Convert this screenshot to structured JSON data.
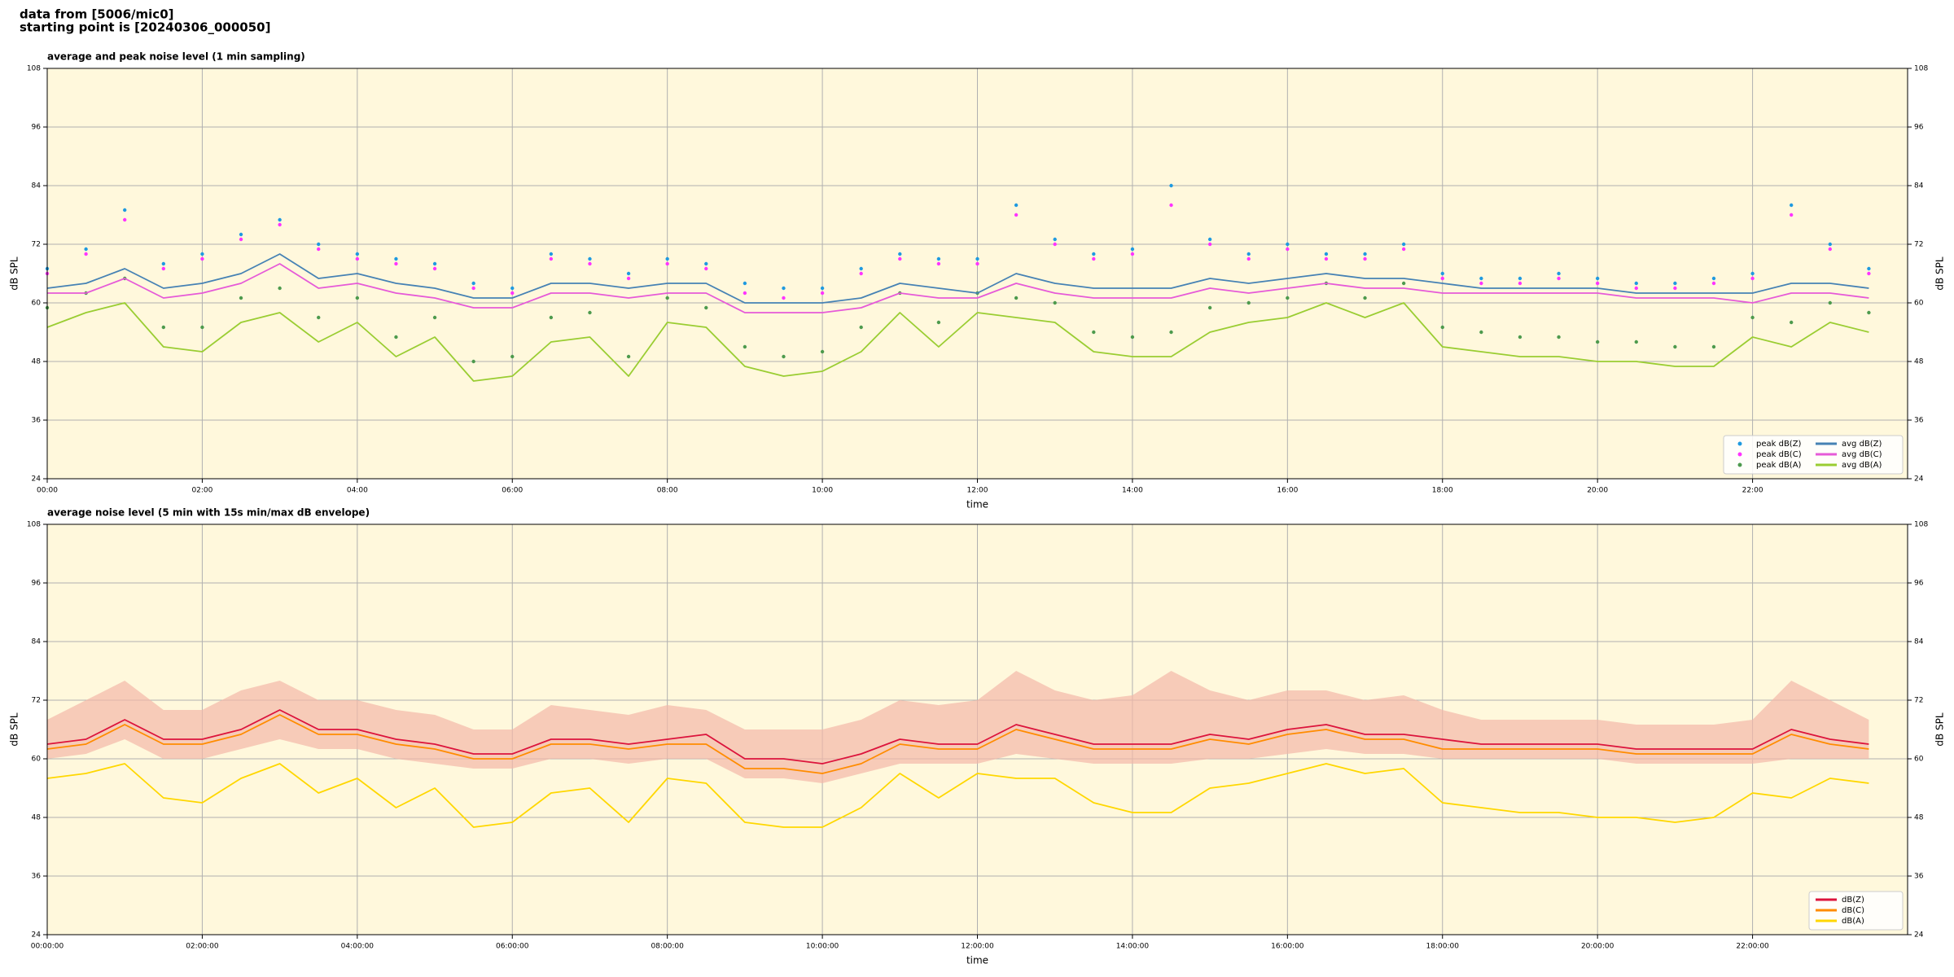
{
  "header": {
    "line1": "data from [5006/mic0]",
    "line2": "starting point is [20240306_000050]"
  },
  "chart_data": [
    {
      "type": "line",
      "title": "average and peak noise level (1 min sampling)",
      "x_label": "time",
      "y_label": "dB SPL",
      "y2_label": "dB SPL",
      "background": "#fff8dc",
      "grid": true,
      "legend": "lower right",
      "legend_columns": 2,
      "xlim": [
        0,
        24
      ],
      "xticks": [
        {
          "value": 0,
          "label": "00:00"
        },
        {
          "value": 2,
          "label": "02:00"
        },
        {
          "value": 4,
          "label": "04:00"
        },
        {
          "value": 6,
          "label": "06:00"
        },
        {
          "value": 8,
          "label": "08:00"
        },
        {
          "value": 10,
          "label": "10:00"
        },
        {
          "value": 12,
          "label": "12:00"
        },
        {
          "value": 14,
          "label": "14:00"
        },
        {
          "value": 16,
          "label": "16:00"
        },
        {
          "value": 18,
          "label": "18:00"
        },
        {
          "value": 20,
          "label": "20:00"
        },
        {
          "value": 22,
          "label": "22:00"
        }
      ],
      "ylim": [
        24,
        108
      ],
      "yticks": [
        24,
        36,
        48,
        60,
        72,
        84,
        96,
        108
      ],
      "y2lim": [
        24,
        108
      ],
      "y2ticks": [
        24,
        36,
        48,
        60,
        72,
        84,
        96,
        108
      ],
      "x": [
        0,
        0.5,
        1,
        1.5,
        2,
        2.5,
        3,
        3.5,
        4,
        4.5,
        5,
        5.5,
        6,
        6.5,
        7,
        7.5,
        8,
        8.5,
        9,
        9.5,
        10,
        10.5,
        11,
        11.5,
        12,
        12.5,
        13,
        13.5,
        14,
        14.5,
        15,
        15.5,
        16,
        16.5,
        17,
        17.5,
        18,
        18.5,
        19,
        19.5,
        20,
        20.5,
        21,
        21.5,
        22,
        22.5,
        23,
        23.5
      ],
      "series": [
        {
          "name": "peak dB(Z)",
          "type": "scatter",
          "color": "#1f9ae0",
          "values": [
            67,
            71,
            79,
            68,
            70,
            74,
            77,
            72,
            70,
            69,
            68,
            64,
            63,
            70,
            69,
            66,
            69,
            68,
            64,
            63,
            63,
            67,
            70,
            69,
            69,
            80,
            73,
            70,
            71,
            84,
            73,
            70,
            72,
            70,
            70,
            72,
            66,
            65,
            65,
            66,
            65,
            64,
            64,
            65,
            66,
            80,
            72,
            67
          ]
        },
        {
          "name": "peak dB(C)",
          "type": "scatter",
          "color": "#ff33ff",
          "values": [
            66,
            70,
            77,
            67,
            69,
            73,
            76,
            71,
            69,
            68,
            67,
            63,
            62,
            69,
            68,
            65,
            68,
            67,
            62,
            61,
            62,
            66,
            69,
            68,
            68,
            78,
            72,
            69,
            70,
            80,
            72,
            69,
            71,
            69,
            69,
            71,
            65,
            64,
            64,
            65,
            64,
            63,
            63,
            64,
            65,
            78,
            71,
            66
          ]
        },
        {
          "name": "peak dB(A)",
          "type": "scatter",
          "color": "#4d9a4d",
          "values": [
            59,
            62,
            65,
            55,
            55,
            61,
            63,
            57,
            61,
            53,
            57,
            48,
            49,
            57,
            58,
            49,
            61,
            59,
            51,
            49,
            50,
            55,
            62,
            56,
            62,
            61,
            60,
            54,
            53,
            54,
            59,
            60,
            61,
            64,
            61,
            64,
            55,
            54,
            53,
            53,
            52,
            52,
            51,
            51,
            57,
            56,
            60,
            58
          ]
        },
        {
          "name": "avg dB(Z)",
          "type": "line",
          "color": "#4682b4",
          "values": [
            63,
            64,
            67,
            63,
            64,
            66,
            70,
            65,
            66,
            64,
            63,
            61,
            61,
            64,
            64,
            63,
            64,
            64,
            60,
            60,
            60,
            61,
            64,
            63,
            62,
            66,
            64,
            63,
            63,
            63,
            65,
            64,
            65,
            66,
            65,
            65,
            64,
            63,
            63,
            63,
            63,
            62,
            62,
            62,
            62,
            64,
            64,
            63
          ]
        },
        {
          "name": "avg dB(C)",
          "type": "line",
          "color": "#e65ad8",
          "values": [
            62,
            62,
            65,
            61,
            62,
            64,
            68,
            63,
            64,
            62,
            61,
            59,
            59,
            62,
            62,
            61,
            62,
            62,
            58,
            58,
            58,
            59,
            62,
            61,
            61,
            64,
            62,
            61,
            61,
            61,
            63,
            62,
            63,
            64,
            63,
            63,
            62,
            62,
            62,
            62,
            62,
            61,
            61,
            61,
            60,
            62,
            62,
            61
          ]
        },
        {
          "name": "avg dB(A)",
          "type": "line",
          "color": "#9acd32",
          "values": [
            55,
            58,
            60,
            51,
            50,
            56,
            58,
            52,
            56,
            49,
            53,
            44,
            45,
            52,
            53,
            45,
            56,
            55,
            47,
            45,
            46,
            50,
            58,
            51,
            58,
            57,
            56,
            50,
            49,
            49,
            54,
            56,
            57,
            60,
            57,
            60,
            51,
            50,
            49,
            49,
            48,
            48,
            47,
            47,
            53,
            51,
            56,
            54
          ]
        }
      ]
    },
    {
      "type": "line",
      "title": "average noise level (5 min with 15s min/max dB envelope)",
      "x_label": "time",
      "y_label": "dB SPL",
      "y2_label": "dB SPL",
      "background": "#fff8dc",
      "grid": true,
      "legend": "lower right",
      "legend_columns": 1,
      "xlim": [
        0,
        24
      ],
      "xticks": [
        {
          "value": 0,
          "label": "00:00:00"
        },
        {
          "value": 2,
          "label": "02:00:00"
        },
        {
          "value": 4,
          "label": "04:00:00"
        },
        {
          "value": 6,
          "label": "06:00:00"
        },
        {
          "value": 8,
          "label": "08:00:00"
        },
        {
          "value": 10,
          "label": "10:00:00"
        },
        {
          "value": 12,
          "label": "12:00:00"
        },
        {
          "value": 14,
          "label": "14:00:00"
        },
        {
          "value": 16,
          "label": "16:00:00"
        },
        {
          "value": 18,
          "label": "18:00:00"
        },
        {
          "value": 20,
          "label": "20:00:00"
        },
        {
          "value": 22,
          "label": "22:00:00"
        }
      ],
      "ylim": [
        24,
        108
      ],
      "yticks": [
        24,
        36,
        48,
        60,
        72,
        84,
        96,
        108
      ],
      "y2lim": [
        24,
        108
      ],
      "y2ticks": [
        24,
        36,
        48,
        60,
        72,
        84,
        96,
        108
      ],
      "x": [
        0,
        0.5,
        1,
        1.5,
        2,
        2.5,
        3,
        3.5,
        4,
        4.5,
        5,
        5.5,
        6,
        6.5,
        7,
        7.5,
        8,
        8.5,
        9,
        9.5,
        10,
        10.5,
        11,
        11.5,
        12,
        12.5,
        13,
        13.5,
        14,
        14.5,
        15,
        15.5,
        16,
        16.5,
        17,
        17.5,
        18,
        18.5,
        19,
        19.5,
        20,
        20.5,
        21,
        21.5,
        22,
        22.5,
        23,
        23.5
      ],
      "envelope": {
        "color": "#f4b8a8",
        "high": [
          68,
          72,
          76,
          70,
          70,
          74,
          76,
          72,
          72,
          70,
          69,
          66,
          66,
          71,
          70,
          69,
          71,
          70,
          66,
          66,
          66,
          68,
          72,
          71,
          72,
          78,
          74,
          72,
          73,
          78,
          74,
          72,
          74,
          74,
          72,
          73,
          70,
          68,
          68,
          68,
          68,
          67,
          67,
          67,
          68,
          76,
          72,
          68
        ],
        "low": [
          60,
          61,
          64,
          60,
          60,
          62,
          64,
          62,
          62,
          60,
          59,
          58,
          58,
          60,
          60,
          59,
          60,
          60,
          56,
          56,
          55,
          57,
          59,
          59,
          59,
          61,
          60,
          59,
          59,
          59,
          60,
          60,
          61,
          62,
          61,
          61,
          60,
          60,
          60,
          60,
          60,
          59,
          59,
          59,
          59,
          60,
          60,
          60
        ]
      },
      "series": [
        {
          "name": "dB(Z)",
          "type": "line",
          "color": "#dc143c",
          "values": [
            63,
            64,
            68,
            64,
            64,
            66,
            70,
            66,
            66,
            64,
            63,
            61,
            61,
            64,
            64,
            63,
            64,
            65,
            60,
            60,
            59,
            61,
            64,
            63,
            63,
            67,
            65,
            63,
            63,
            63,
            65,
            64,
            66,
            67,
            65,
            65,
            64,
            63,
            63,
            63,
            63,
            62,
            62,
            62,
            62,
            66,
            64,
            63
          ]
        },
        {
          "name": "dB(C)",
          "type": "line",
          "color": "#ff8c00",
          "values": [
            62,
            63,
            67,
            63,
            63,
            65,
            69,
            65,
            65,
            63,
            62,
            60,
            60,
            63,
            63,
            62,
            63,
            63,
            58,
            58,
            57,
            59,
            63,
            62,
            62,
            66,
            64,
            62,
            62,
            62,
            64,
            63,
            65,
            66,
            64,
            64,
            62,
            62,
            62,
            62,
            62,
            61,
            61,
            61,
            61,
            65,
            63,
            62
          ]
        },
        {
          "name": "dB(A)",
          "type": "line",
          "color": "#ffd700",
          "values": [
            56,
            57,
            59,
            52,
            51,
            56,
            59,
            53,
            56,
            50,
            54,
            46,
            47,
            53,
            54,
            47,
            56,
            55,
            47,
            46,
            46,
            50,
            57,
            52,
            57,
            56,
            56,
            51,
            49,
            49,
            54,
            55,
            57,
            59,
            57,
            58,
            51,
            50,
            49,
            49,
            48,
            48,
            47,
            48,
            53,
            52,
            56,
            55
          ]
        }
      ]
    }
  ]
}
